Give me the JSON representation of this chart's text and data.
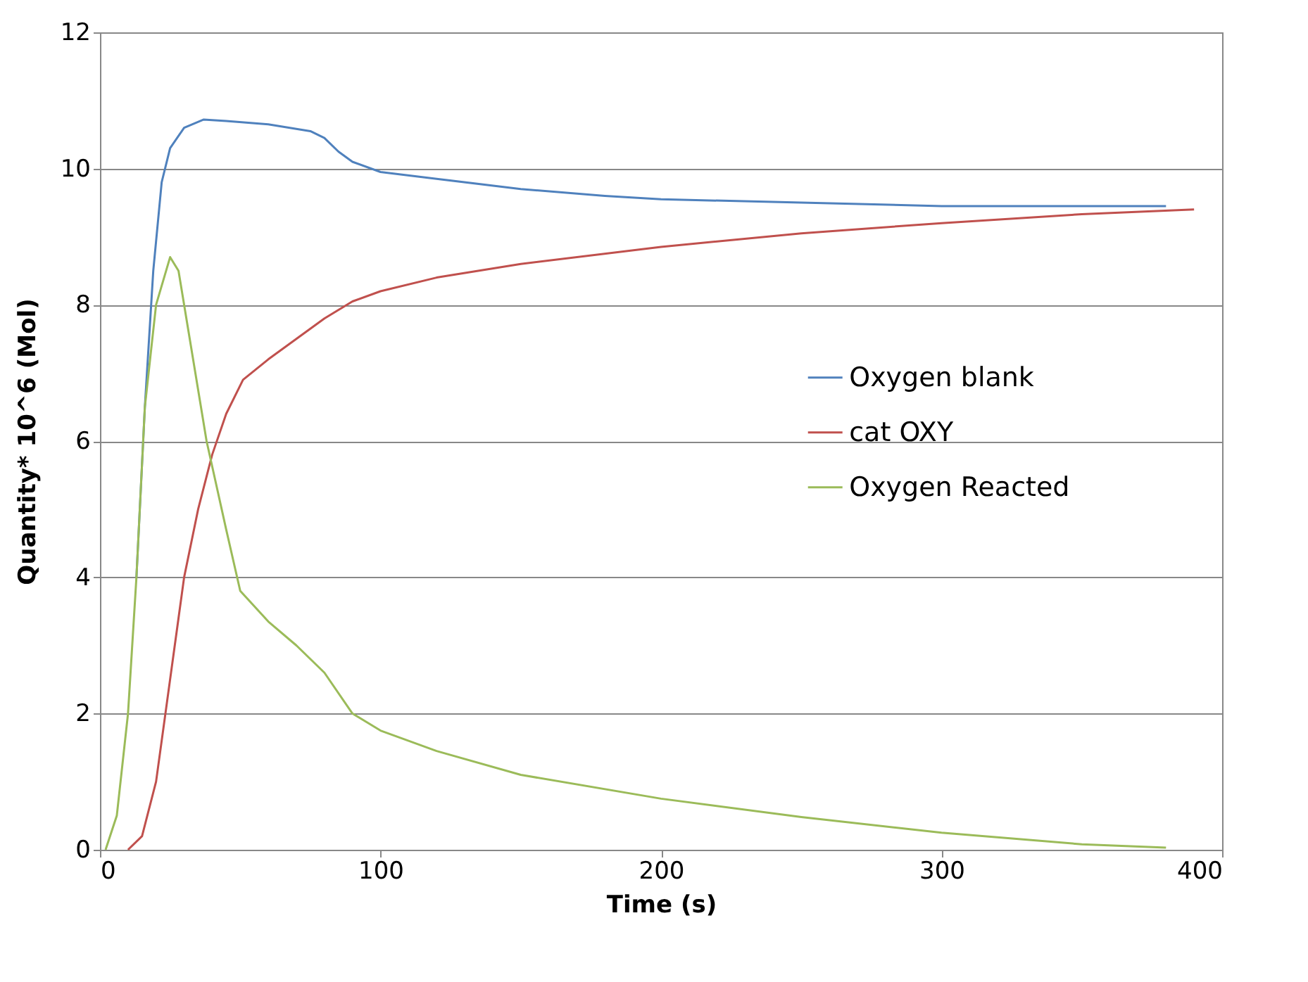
{
  "chart_data": {
    "type": "line",
    "xlabel": "Time (s)",
    "ylabel": "Quantity* 10^6  (Mol)",
    "xlim": [
      0,
      400
    ],
    "xticks": [
      0,
      100,
      200,
      300,
      400
    ],
    "ylim": [
      0,
      12
    ],
    "yticks": [
      0,
      2,
      4,
      6,
      8,
      10,
      12
    ],
    "grid": "y",
    "legend": "right",
    "series": [
      {
        "name": "Oxygen blank",
        "color": "#4f81bd",
        "x": [
          13,
          16,
          19,
          22,
          25,
          30,
          37,
          45,
          60,
          75,
          80,
          85,
          90,
          100,
          120,
          150,
          180,
          200,
          250,
          300,
          380
        ],
        "values": [
          4,
          6.5,
          8.5,
          9.8,
          10.3,
          10.6,
          10.72,
          10.7,
          10.65,
          10.55,
          10.45,
          10.25,
          10.1,
          9.95,
          9.85,
          9.7,
          9.6,
          9.55,
          9.5,
          9.45,
          9.45
        ]
      },
      {
        "name": "cat OXY",
        "color": "#c0504d",
        "x": [
          10,
          15,
          20,
          25,
          30,
          35,
          40,
          45,
          51,
          60,
          70,
          80,
          90,
          100,
          120,
          150,
          200,
          250,
          300,
          350,
          390
        ],
        "values": [
          0,
          0.2,
          1,
          2.5,
          4,
          5,
          5.8,
          6.4,
          6.9,
          7.2,
          7.5,
          7.8,
          8.05,
          8.2,
          8.4,
          8.6,
          8.85,
          9.05,
          9.2,
          9.33,
          9.4
        ]
      },
      {
        "name": "Oxygen Reacted",
        "color": "#9bbb59",
        "x": [
          2,
          6,
          10,
          13,
          16,
          20,
          25,
          28,
          32,
          38,
          45,
          50,
          60,
          70,
          80,
          90,
          100,
          120,
          150,
          200,
          250,
          300,
          350,
          380
        ],
        "values": [
          0,
          0.5,
          2,
          4,
          6.5,
          8,
          8.7,
          8.5,
          7.5,
          6,
          4.7,
          3.8,
          3.35,
          3,
          2.6,
          2,
          1.75,
          1.45,
          1.1,
          0.75,
          0.48,
          0.25,
          0.08,
          0.03
        ]
      }
    ]
  }
}
